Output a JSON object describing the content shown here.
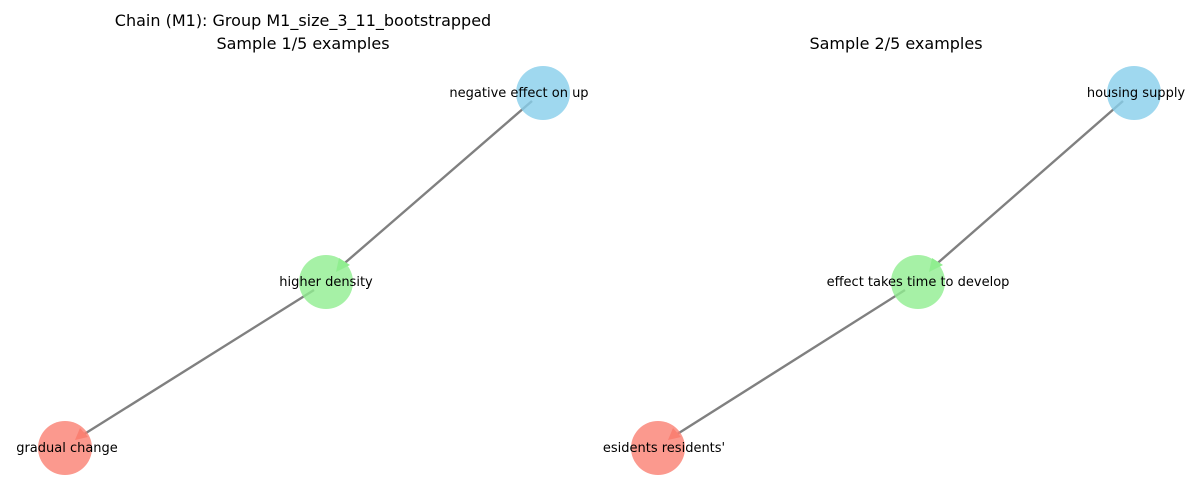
{
  "panels": [
    {
      "title_line1": "Chain (M1): Group M1_size_3_11_bootstrapped",
      "title_line2": "Sample 1/5 examples",
      "nodes": [
        {
          "label": "negative effect on up",
          "color": "#87ceeb"
        },
        {
          "label": "higher density",
          "color": "#90ee90"
        },
        {
          "label": "gradual change",
          "color": "#fa8072"
        }
      ]
    },
    {
      "title_line1": "",
      "title_line2": "Sample 2/5 examples",
      "nodes": [
        {
          "label": "housing supply",
          "color": "#87ceeb"
        },
        {
          "label": "effect takes time to develop",
          "color": "#90ee90"
        },
        {
          "label": "esidents residents'",
          "color": "#fa8072"
        }
      ]
    }
  ],
  "colors": {
    "edge": "#808080",
    "background": "#ffffff"
  }
}
